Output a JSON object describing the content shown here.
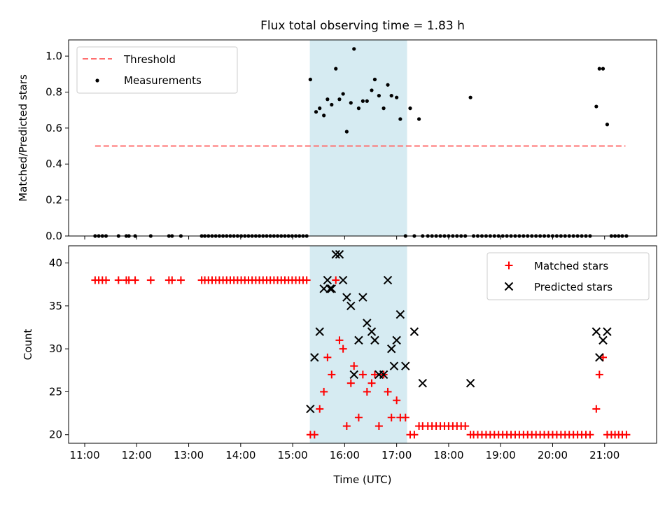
{
  "figure": {
    "title": "Flux total observing time = 1.83 h",
    "xlabel": "Time (UTC)"
  },
  "colors": {
    "threshold": "#ff6f6f",
    "measurement": "#000000",
    "matched": "#ff0000",
    "predicted": "#000000",
    "span": "#add8e6"
  },
  "chart_data": [
    {
      "type": "scatter",
      "panel": "top",
      "ylabel": "Matched/Predicted stars",
      "x_unit": "hours UTC",
      "xlim": [
        10.69,
        22.0
      ],
      "ylim": [
        0,
        1.09
      ],
      "x_ticks": [
        11,
        12,
        13,
        14,
        15,
        16,
        17,
        18,
        19,
        20,
        21
      ],
      "x_tick_labels": [
        "11:00",
        "12:00",
        "13:00",
        "14:00",
        "15:00",
        "16:00",
        "17:00",
        "18:00",
        "19:00",
        "20:00",
        "21:00"
      ],
      "y_ticks": [
        0.0,
        0.2,
        0.4,
        0.6,
        0.8,
        1.0
      ],
      "y_tick_labels": [
        "0.0",
        "0.2",
        "0.4",
        "0.6",
        "0.8",
        "1.0"
      ],
      "shaded_span": [
        15.33,
        17.2
      ],
      "legend_position": "upper-left",
      "legend": [
        "Threshold",
        "Measurements"
      ],
      "series": [
        {
          "name": "Threshold",
          "kind": "line",
          "style": "dashed",
          "x": [
            11.2,
            21.4
          ],
          "y": [
            0.5,
            0.5
          ]
        },
        {
          "name": "Measurements",
          "kind": "points",
          "x": [
            11.2,
            11.27,
            11.34,
            11.41,
            11.65,
            11.8,
            11.85,
            11.97,
            12.27,
            12.62,
            12.68,
            12.85,
            13.25,
            13.31,
            13.38,
            13.45,
            13.52,
            13.59,
            13.66,
            13.73,
            13.8,
            13.87,
            13.94,
            14.01,
            14.08,
            14.15,
            14.22,
            14.29,
            14.36,
            14.43,
            14.5,
            14.57,
            14.64,
            14.71,
            14.78,
            14.85,
            14.92,
            14.99,
            15.06,
            15.13,
            15.2,
            15.27,
            15.34,
            15.45,
            15.52,
            15.6,
            15.67,
            15.75,
            15.83,
            15.9,
            15.97,
            16.04,
            16.12,
            16.18,
            16.27,
            16.35,
            16.43,
            16.52,
            16.58,
            16.66,
            16.75,
            16.83,
            16.9,
            17.0,
            17.07,
            17.17,
            17.26,
            17.34,
            17.43,
            17.5,
            17.6,
            17.68,
            17.76,
            17.84,
            17.92,
            18.0,
            18.08,
            18.16,
            18.24,
            18.32,
            18.42,
            18.48,
            18.56,
            18.64,
            18.72,
            18.8,
            18.88,
            18.96,
            19.04,
            19.12,
            19.2,
            19.28,
            19.36,
            19.44,
            19.52,
            19.6,
            19.68,
            19.76,
            19.84,
            19.92,
            20.0,
            20.08,
            20.16,
            20.24,
            20.32,
            20.4,
            20.48,
            20.56,
            20.64,
            20.72,
            20.84,
            20.9,
            20.97,
            21.05,
            21.13,
            21.2,
            21.27,
            21.34,
            21.42
          ],
          "y": [
            0,
            0,
            0,
            0,
            0,
            0,
            0,
            0,
            0,
            0,
            0,
            0,
            0,
            0,
            0,
            0,
            0,
            0,
            0,
            0,
            0,
            0,
            0,
            0,
            0,
            0,
            0,
            0,
            0,
            0,
            0,
            0,
            0,
            0,
            0,
            0,
            0,
            0,
            0,
            0,
            0,
            0,
            0.87,
            0.69,
            0.71,
            0.67,
            0.76,
            0.73,
            0.93,
            0.76,
            0.79,
            0.58,
            0.74,
            1.04,
            0.71,
            0.75,
            0.75,
            0.81,
            0.87,
            0.78,
            0.71,
            0.84,
            0.78,
            0.77,
            0.65,
            0,
            0.71,
            0,
            0.65,
            0,
            0,
            0,
            0,
            0,
            0,
            0,
            0,
            0,
            0,
            0,
            0.77,
            0,
            0,
            0,
            0,
            0,
            0,
            0,
            0,
            0,
            0,
            0,
            0,
            0,
            0,
            0,
            0,
            0,
            0,
            0,
            0,
            0,
            0,
            0,
            0,
            0,
            0,
            0,
            0,
            0,
            0.72,
            0.93,
            0.93,
            0.62,
            0,
            0,
            0,
            0,
            0
          ]
        }
      ]
    },
    {
      "type": "scatter",
      "panel": "bottom",
      "ylabel": "Count",
      "x_unit": "hours UTC",
      "xlim": [
        10.69,
        22.0
      ],
      "ylim": [
        19,
        42
      ],
      "x_ticks": [
        11,
        12,
        13,
        14,
        15,
        16,
        17,
        18,
        19,
        20,
        21
      ],
      "x_tick_labels": [
        "11:00",
        "12:00",
        "13:00",
        "14:00",
        "15:00",
        "16:00",
        "17:00",
        "18:00",
        "19:00",
        "20:00",
        "21:00"
      ],
      "y_ticks": [
        20,
        25,
        30,
        35,
        40
      ],
      "y_tick_labels": [
        "20",
        "25",
        "30",
        "35",
        "40"
      ],
      "shaded_span": [
        15.33,
        17.2
      ],
      "legend_position": "upper-right",
      "legend": [
        "Matched stars",
        "Predicted stars"
      ],
      "series": [
        {
          "name": "Matched stars",
          "marker": "plus",
          "x": [
            11.2,
            11.27,
            11.34,
            11.41,
            11.65,
            11.8,
            11.85,
            11.97,
            12.27,
            12.62,
            12.68,
            12.85,
            13.25,
            13.31,
            13.38,
            13.45,
            13.52,
            13.59,
            13.66,
            13.73,
            13.8,
            13.87,
            13.94,
            14.01,
            14.08,
            14.15,
            14.22,
            14.29,
            14.36,
            14.43,
            14.5,
            14.57,
            14.64,
            14.71,
            14.78,
            14.85,
            14.92,
            14.99,
            15.06,
            15.13,
            15.2,
            15.27,
            15.34,
            15.42,
            15.52,
            15.6,
            15.67,
            15.75,
            15.83,
            15.9,
            15.97,
            16.04,
            16.12,
            16.18,
            16.27,
            16.35,
            16.43,
            16.52,
            16.58,
            16.66,
            16.75,
            16.83,
            16.9,
            17.0,
            17.07,
            17.17,
            17.26,
            17.34,
            17.43,
            17.5,
            17.6,
            17.68,
            17.76,
            17.84,
            17.92,
            18.0,
            18.08,
            18.16,
            18.24,
            18.32,
            18.42,
            18.48,
            18.56,
            18.64,
            18.72,
            18.8,
            18.88,
            18.96,
            19.04,
            19.12,
            19.2,
            19.28,
            19.36,
            19.44,
            19.52,
            19.6,
            19.68,
            19.76,
            19.84,
            19.92,
            20.0,
            20.08,
            20.16,
            20.24,
            20.32,
            20.4,
            20.48,
            20.56,
            20.64,
            20.72,
            20.84,
            20.9,
            20.97,
            21.05,
            21.13,
            21.2,
            21.27,
            21.34,
            21.42
          ],
          "y": [
            38,
            38,
            38,
            38,
            38,
            38,
            38,
            38,
            38,
            38,
            38,
            38,
            38,
            38,
            38,
            38,
            38,
            38,
            38,
            38,
            38,
            38,
            38,
            38,
            38,
            38,
            38,
            38,
            38,
            38,
            38,
            38,
            38,
            38,
            38,
            38,
            38,
            38,
            38,
            38,
            38,
            38,
            20,
            20,
            23,
            25,
            29,
            27,
            38,
            31,
            30,
            21,
            26,
            28,
            22,
            27,
            25,
            26,
            27,
            21,
            27,
            25,
            22,
            24,
            22,
            22,
            20,
            20,
            21,
            21,
            21,
            21,
            21,
            21,
            21,
            21,
            21,
            21,
            21,
            21,
            20,
            20,
            20,
            20,
            20,
            20,
            20,
            20,
            20,
            20,
            20,
            20,
            20,
            20,
            20,
            20,
            20,
            20,
            20,
            20,
            20,
            20,
            20,
            20,
            20,
            20,
            20,
            20,
            20,
            20,
            23,
            27,
            29,
            20,
            20,
            20,
            20,
            20,
            20
          ]
        },
        {
          "name": "Predicted stars",
          "marker": "x",
          "x": [
            15.34,
            15.42,
            15.52,
            15.6,
            15.67,
            15.72,
            15.75,
            15.83,
            15.9,
            15.97,
            16.04,
            16.12,
            16.18,
            16.27,
            16.35,
            16.43,
            16.52,
            16.58,
            16.66,
            16.75,
            16.83,
            16.9,
            16.95,
            17.0,
            17.07,
            17.17,
            17.34,
            17.5,
            18.42,
            20.84,
            20.9,
            20.97,
            21.05
          ],
          "y": [
            23,
            29,
            32,
            37,
            38,
            37,
            37,
            41,
            41,
            38,
            36,
            35,
            27,
            31,
            36,
            33,
            32,
            31,
            27,
            27,
            38,
            30,
            28,
            31,
            34,
            28,
            32,
            26,
            26,
            32,
            29,
            31,
            32
          ]
        }
      ]
    }
  ]
}
